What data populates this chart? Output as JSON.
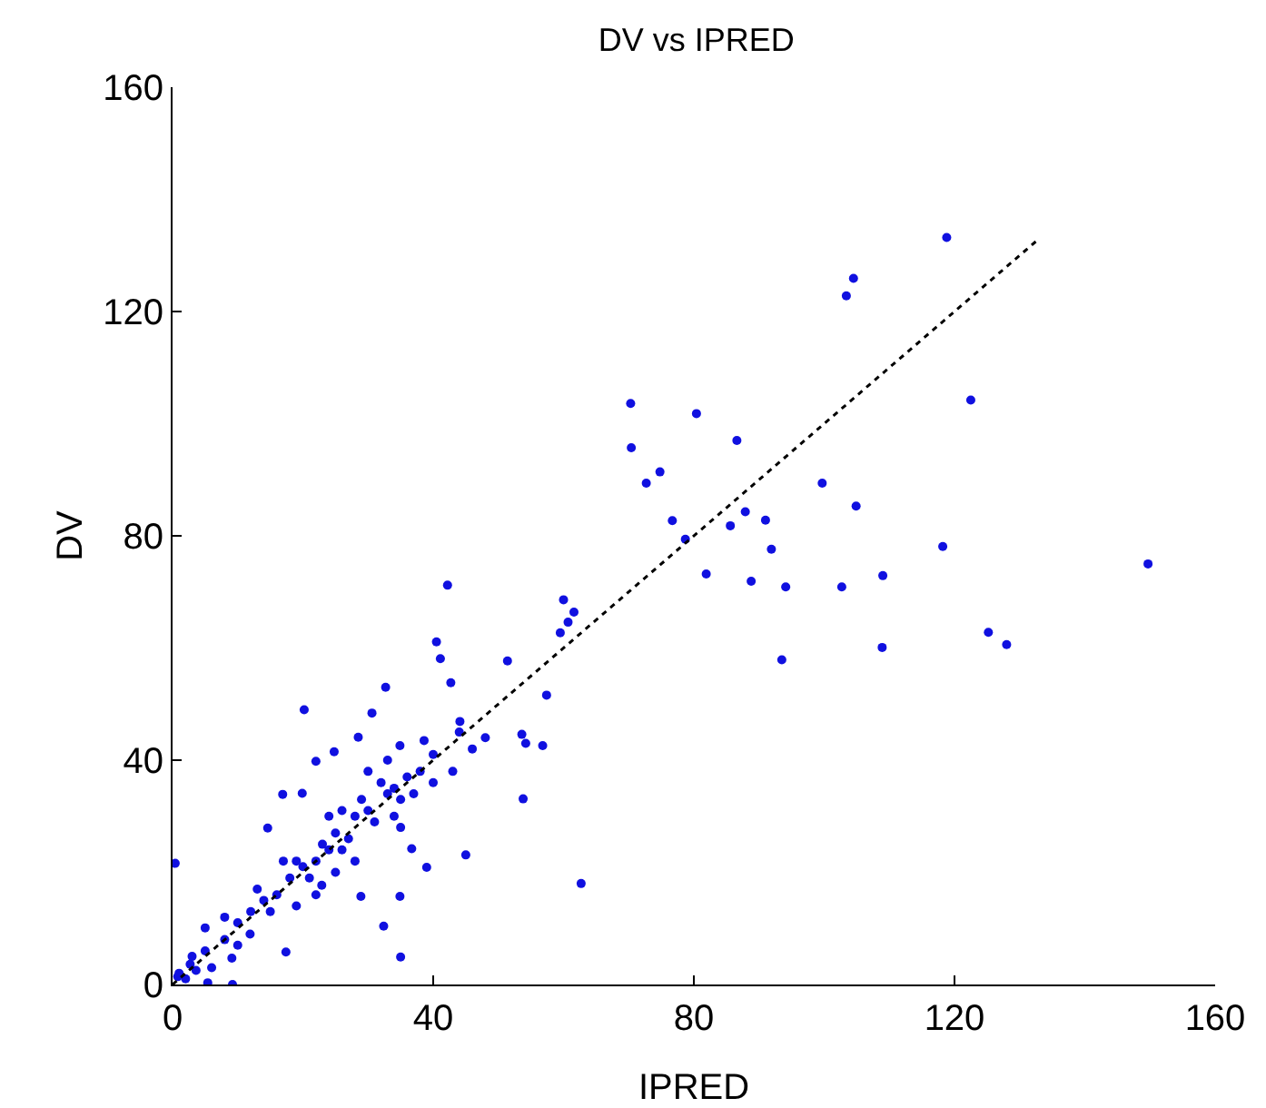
{
  "chart_data": {
    "type": "scatter",
    "title": "DV vs IPRED",
    "xlabel": "IPRED",
    "ylabel": "DV",
    "xlim": [
      0,
      160
    ],
    "xticks": [
      0,
      40,
      80,
      120,
      160
    ],
    "ylim": [
      0,
      160
    ],
    "yticks": [
      0,
      40,
      80,
      120,
      160
    ],
    "grid": false,
    "marker": "circle",
    "series": [
      {
        "color": "#1010e0",
        "x": [
          118.8,
          104.5,
          103.4,
          70.3,
          80.4,
          122.5,
          70.4,
          86.6,
          74.8,
          72.7,
          99.7,
          104.9,
          76.7,
          87.9,
          91.0,
          78.7,
          85.6,
          91.9,
          118.2,
          149.7,
          81.9,
          88.8,
          94.1,
          102.7,
          109.0,
          125.2,
          128.0,
          93.5,
          108.9,
          42.2,
          60.0,
          61.6,
          60.7,
          59.5,
          40.5,
          41.1,
          51.4,
          32.7,
          20.2,
          57.4,
          42.7,
          30.6,
          53.6,
          54.2,
          56.8,
          53.8,
          62.7,
          35.0,
          32.4,
          0.4,
          9.2,
          14.6,
          16.9,
          19.9,
          22.0,
          24.8,
          28.5,
          34.9,
          38.6,
          44.1,
          45.0,
          39.0,
          36.7,
          34.9,
          28.9,
          22.9,
          17.4,
          11.9,
          9.1,
          5.0,
          2.7,
          0.8,
          3.6,
          5.4,
          5,
          8,
          10,
          12,
          14,
          16,
          18,
          20,
          22,
          24,
          25,
          27,
          28,
          30,
          31,
          33,
          34,
          35,
          36,
          38,
          40,
          19,
          21,
          23,
          26,
          29,
          32,
          34,
          37,
          13,
          15,
          17,
          24,
          26,
          30,
          33,
          35,
          28,
          25,
          22,
          19,
          40,
          43,
          44,
          46,
          48,
          3,
          6,
          2,
          1,
          8,
          10
        ],
        "values": [
          133.2,
          125.9,
          122.8,
          103.6,
          101.8,
          104.2,
          95.7,
          97.0,
          91.4,
          89.4,
          89.4,
          85.3,
          82.7,
          84.3,
          82.8,
          79.4,
          81.8,
          77.6,
          78.1,
          75.0,
          73.2,
          71.9,
          70.9,
          70.9,
          72.9,
          62.8,
          60.6,
          57.9,
          60.1,
          71.2,
          68.6,
          66.4,
          64.6,
          62.7,
          61.1,
          58.1,
          57.7,
          53.0,
          49.0,
          51.6,
          53.8,
          48.4,
          44.6,
          43.0,
          42.6,
          33.1,
          18.0,
          4.9,
          10.4,
          21.6,
          0,
          27.9,
          33.9,
          34.1,
          39.8,
          41.5,
          44.1,
          42.6,
          43.5,
          46.9,
          23.1,
          20.9,
          24.2,
          15.7,
          15.7,
          17.7,
          5.8,
          9.0,
          4.7,
          10.1,
          3.6,
          1.4,
          2.5,
          0.3,
          6,
          8,
          11,
          13,
          15,
          16,
          19,
          21,
          22,
          24,
          27,
          26,
          30,
          31,
          29,
          34,
          35,
          33,
          37,
          38,
          41,
          22,
          19,
          25,
          24,
          33,
          36,
          30,
          34,
          17,
          13,
          22,
          30,
          31,
          38,
          40,
          28,
          22,
          20,
          16,
          14,
          36,
          38,
          45,
          42,
          44,
          5,
          3,
          1,
          2,
          12,
          7
        ]
      },
      {
        "type": "line",
        "color": "#000000",
        "line_style": "dotted",
        "marker": "none",
        "x": [
          0,
          133
        ],
        "values": [
          0,
          133
        ]
      }
    ]
  }
}
